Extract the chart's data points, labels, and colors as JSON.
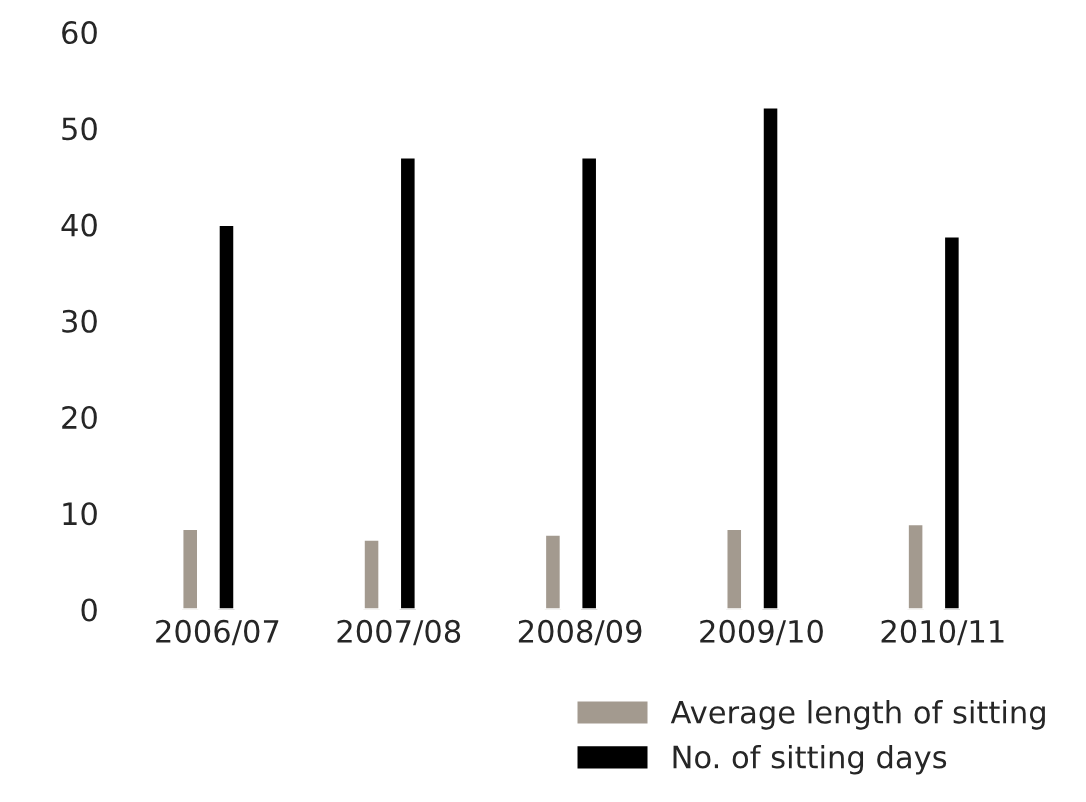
{
  "chart_data": {
    "type": "bar",
    "categories": [
      "2006/07",
      "2007/08",
      "2008/09",
      "2009/10",
      "2010/11"
    ],
    "series": [
      {
        "name": "Average length of sitting",
        "color": "#a39a8f",
        "values": [
          8.4,
          7.3,
          7.8,
          8.4,
          8.9
        ]
      },
      {
        "name": "No. of sitting days",
        "color": "#000000",
        "values": [
          40.0,
          47.0,
          47.0,
          52.2,
          38.8
        ]
      }
    ],
    "ylim": [
      0,
      60
    ],
    "yticks": [
      0,
      10,
      20,
      30,
      40,
      50,
      60
    ],
    "grid": false,
    "legend": "bottom right"
  }
}
